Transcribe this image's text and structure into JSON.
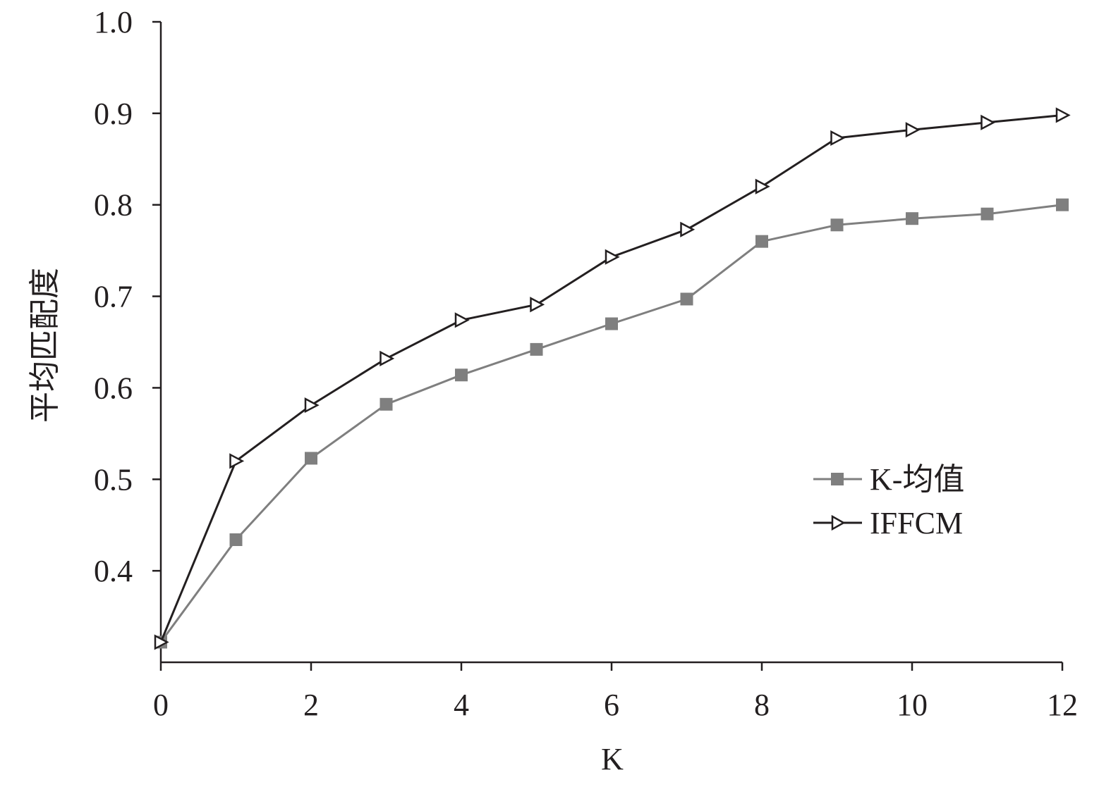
{
  "chart_data": {
    "type": "line",
    "xlabel": "K",
    "ylabel": "平均匹配度",
    "xlim": [
      0,
      12
    ],
    "ylim": [
      0.3,
      1.0
    ],
    "xticks": [
      0,
      2,
      4,
      6,
      8,
      10,
      12
    ],
    "yticks": [
      0.4,
      0.5,
      0.6,
      0.7,
      0.8,
      0.9,
      1.0
    ],
    "ytick_labels": [
      "0.4",
      "0.5",
      "0.6",
      "0.7",
      "0.8",
      "0.9",
      "1.0"
    ],
    "grid": false,
    "legend_position": "center-right",
    "x": [
      0,
      1,
      2,
      3,
      4,
      5,
      6,
      7,
      8,
      9,
      10,
      11,
      12
    ],
    "series": [
      {
        "name": "K-均值",
        "color": "#7f7f7f",
        "marker": "square",
        "values": [
          0.322,
          0.434,
          0.523,
          0.582,
          0.614,
          0.642,
          0.67,
          0.697,
          0.76,
          0.778,
          0.785,
          0.79,
          0.8
        ]
      },
      {
        "name": "IFFCM",
        "color": "#231f20",
        "marker": "triangle-right",
        "values": [
          0.322,
          0.52,
          0.581,
          0.632,
          0.674,
          0.691,
          0.743,
          0.773,
          0.82,
          0.873,
          0.882,
          0.89,
          0.898
        ]
      }
    ]
  }
}
